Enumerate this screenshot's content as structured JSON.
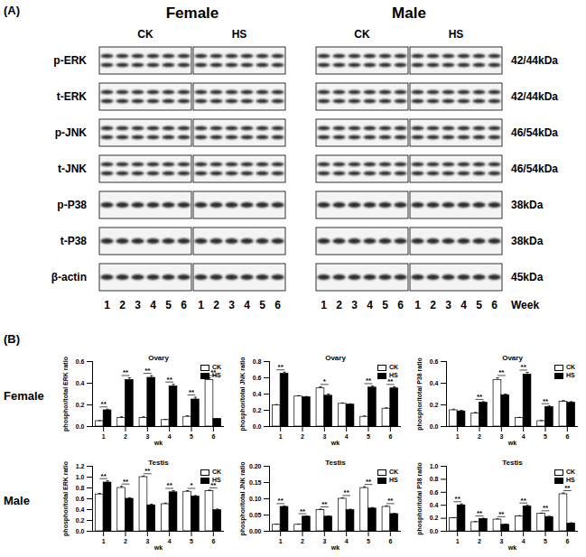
{
  "blots": {
    "panel": "(A)",
    "groups": [
      {
        "name": "Female",
        "conditions": [
          "CK",
          "HS"
        ]
      },
      {
        "name": "Male",
        "conditions": [
          "CK",
          "HS"
        ]
      }
    ],
    "rows": [
      {
        "label": "p-ERK",
        "size": "42/44kDa"
      },
      {
        "label": "t-ERK",
        "size": "42/44kDa"
      },
      {
        "label": "p-JNK",
        "size": "46/54kDa"
      },
      {
        "label": "t-JNK",
        "size": "46/54kDa"
      },
      {
        "label": "p-P38",
        "size": "38kDa"
      },
      {
        "label": "t-P38",
        "size": "38kDa"
      },
      {
        "label": "β-actin",
        "size": "45kDa"
      }
    ],
    "lanes": [
      1,
      2,
      3,
      4,
      5,
      6
    ],
    "lane_label": "Week"
  },
  "panel_b": {
    "panel": "(B)",
    "rows": [
      "Female",
      "Male"
    ]
  },
  "chart_data": [
    {
      "type": "bar",
      "title": "Ovary",
      "x_label": "wk",
      "y_label": "phosphor/total ERK ratio",
      "categories": [
        "1",
        "2",
        "3",
        "4",
        "5",
        "6"
      ],
      "series": [
        {
          "name": "CK",
          "color": "#ffffff",
          "values": [
            0.05,
            0.08,
            0.08,
            0.06,
            0.09,
            0.43
          ],
          "errors": [
            0.005,
            0.01,
            0.01,
            0.005,
            0.01,
            0.02
          ]
        },
        {
          "name": "HS",
          "color": "#000000",
          "values": [
            0.15,
            0.43,
            0.45,
            0.37,
            0.25,
            0.07
          ],
          "errors": [
            0.01,
            0.02,
            0.02,
            0.02,
            0.02,
            0.005
          ]
        }
      ],
      "annotations": [
        "**",
        "**",
        "**",
        "**",
        "**",
        "**"
      ],
      "ylim": [
        0,
        0.6
      ],
      "yticks": [
        {
          "value": 0,
          "label": "0.0"
        },
        0.2,
        0.4,
        0.6
      ],
      "legend": "top-right",
      "grid": false
    },
    {
      "type": "bar",
      "title": "Ovary",
      "x_label": "wk",
      "y_label": "phosphor/total JNK ratio",
      "categories": [
        "1",
        "2",
        "3",
        "4",
        "5",
        "6"
      ],
      "series": [
        {
          "name": "CK",
          "color": "#ffffff",
          "values": [
            0.26,
            0.37,
            0.47,
            0.28,
            0.12,
            0.22
          ],
          "errors": [
            0.01,
            0.01,
            0.02,
            0.01,
            0.01,
            0.01
          ]
        },
        {
          "name": "HS",
          "color": "#000000",
          "values": [
            0.65,
            0.36,
            0.38,
            0.27,
            0.48,
            0.47
          ],
          "errors": [
            0.02,
            0.01,
            0.02,
            0.01,
            0.02,
            0.02
          ]
        }
      ],
      "annotations": [
        "**",
        null,
        "*",
        null,
        "**",
        "**"
      ],
      "ylim": [
        0,
        0.8
      ],
      "yticks": [
        {
          "value": 0,
          "label": "0.0"
        },
        0.2,
        0.4,
        0.6,
        0.8
      ],
      "legend": "top-right",
      "grid": false
    },
    {
      "type": "bar",
      "title": "Ovary",
      "x_label": "wk",
      "y_label": "phosphor/total P38 ratio",
      "categories": [
        "1",
        "2",
        "3",
        "4",
        "5",
        "6"
      ],
      "series": [
        {
          "name": "CK",
          "color": "#ffffff",
          "values": [
            0.15,
            0.12,
            0.43,
            0.08,
            0.05,
            0.23
          ],
          "errors": [
            0.01,
            0.01,
            0.02,
            0.005,
            0.005,
            0.01
          ]
        },
        {
          "name": "HS",
          "color": "#000000",
          "values": [
            0.14,
            0.22,
            0.29,
            0.48,
            0.18,
            0.22
          ],
          "errors": [
            0.01,
            0.01,
            0.01,
            0.02,
            0.01,
            0.01
          ]
        }
      ],
      "annotations": [
        null,
        "**",
        "**",
        "**",
        "**",
        null
      ],
      "ylim": [
        0,
        0.6
      ],
      "yticks": [
        {
          "value": 0,
          "label": "0.0"
        },
        0.2,
        0.4,
        0.6
      ],
      "legend": "top-right",
      "grid": false
    },
    {
      "type": "bar",
      "title": "Testis",
      "x_label": "wk",
      "y_label": "phosphor/total ERK ratio",
      "categories": [
        "1",
        "2",
        "3",
        "4",
        "5",
        "6"
      ],
      "series": [
        {
          "name": "CK",
          "color": "#ffffff",
          "values": [
            0.68,
            0.8,
            1.0,
            0.5,
            0.73,
            0.74
          ],
          "errors": [
            0.02,
            0.03,
            0.02,
            0.02,
            0.02,
            0.02
          ]
        },
        {
          "name": "HS",
          "color": "#000000",
          "values": [
            0.9,
            0.6,
            0.48,
            0.72,
            0.64,
            0.39
          ],
          "errors": [
            0.03,
            0.02,
            0.02,
            0.03,
            0.02,
            0.02
          ]
        }
      ],
      "annotations": [
        "**",
        "**",
        "**",
        "**",
        "*",
        "**"
      ],
      "ylim": [
        0,
        1.2
      ],
      "yticks": [
        {
          "value": 0,
          "label": "0.0"
        },
        0.2,
        0.4,
        0.6,
        0.8,
        {
          "value": 1,
          "label": "1.0"
        },
        1.2
      ],
      "legend": "top-right",
      "grid": false
    },
    {
      "type": "bar",
      "title": "Testis",
      "x_label": "wk",
      "y_label": "phosphor/total JNK ratio",
      "categories": [
        "1",
        "2",
        "3",
        "4",
        "5",
        "6"
      ],
      "series": [
        {
          "name": "CK",
          "color": "#ffffff",
          "values": [
            0.02,
            0.02,
            0.065,
            0.1,
            0.133,
            0.075
          ],
          "errors": [
            0.002,
            0.002,
            0.003,
            0.003,
            0.004,
            0.003
          ]
        },
        {
          "name": "HS",
          "color": "#000000",
          "values": [
            0.075,
            0.045,
            0.045,
            0.065,
            0.07,
            0.053
          ],
          "errors": [
            0.003,
            0.002,
            0.002,
            0.003,
            0.003,
            0.002
          ]
        }
      ],
      "annotations": [
        "**",
        "**",
        "**",
        "**",
        "**",
        "**"
      ],
      "ylim": [
        0,
        0.2
      ],
      "yticks": [
        {
          "value": 0,
          "label": "0.00"
        },
        0.05,
        {
          "value": 0.1,
          "label": "0.10"
        },
        0.15,
        {
          "value": 0.2,
          "label": "0.20"
        }
      ],
      "legend": "top-right",
      "grid": false
    },
    {
      "type": "bar",
      "title": "Testis",
      "x_label": "wk",
      "y_label": "phosphor/total P38 ratio",
      "categories": [
        "1",
        "2",
        "3",
        "4",
        "5",
        "6"
      ],
      "series": [
        {
          "name": "CK",
          "color": "#ffffff",
          "values": [
            0.2,
            0.14,
            0.18,
            0.23,
            0.27,
            0.57
          ],
          "errors": [
            0.01,
            0.01,
            0.01,
            0.01,
            0.01,
            0.02
          ]
        },
        {
          "name": "HS",
          "color": "#000000",
          "values": [
            0.4,
            0.19,
            0.1,
            0.38,
            0.22,
            0.12
          ],
          "errors": [
            0.02,
            0.01,
            0.01,
            0.02,
            0.01,
            0.01
          ]
        }
      ],
      "annotations": [
        "**",
        "**",
        "**",
        "**",
        "**",
        "**"
      ],
      "ylim": [
        0,
        1
      ],
      "yticks": [
        {
          "value": 0,
          "label": "0.0"
        },
        0.2,
        0.4,
        0.6,
        0.8,
        {
          "value": 1,
          "label": "1.0"
        }
      ],
      "legend": "top-right",
      "grid": false
    }
  ]
}
